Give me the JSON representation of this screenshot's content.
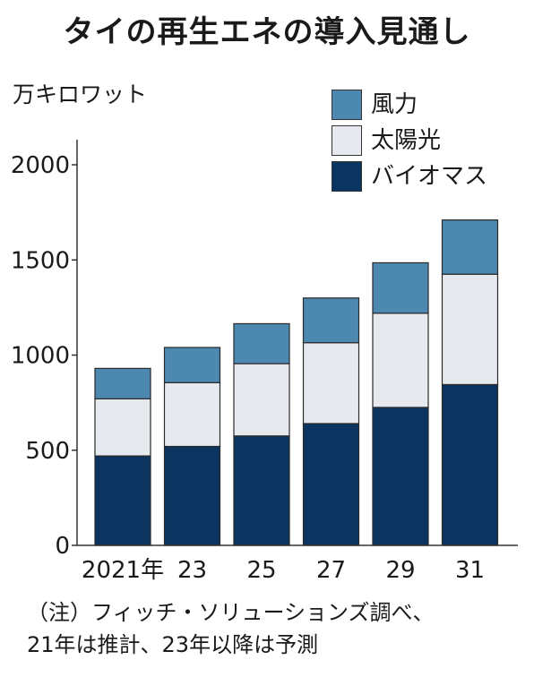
{
  "title": "タイの再生エネの導入見通し",
  "unit_label": "万キロワット",
  "legend": [
    {
      "label": "風力",
      "color": "#4d88b0"
    },
    {
      "label": "太陽光",
      "color": "#e6e9ee"
    },
    {
      "label": "バイオマス",
      "color": "#0b3560"
    }
  ],
  "chart_data": {
    "type": "bar",
    "stacked": true,
    "categories": [
      "2021年",
      "23",
      "25",
      "27",
      "29",
      "31"
    ],
    "series": [
      {
        "name": "バイオマス",
        "color": "#0b3560",
        "values": [
          470,
          520,
          575,
          640,
          725,
          845
        ]
      },
      {
        "name": "太陽光",
        "color": "#e6e9ee",
        "values": [
          300,
          335,
          380,
          425,
          495,
          580
        ]
      },
      {
        "name": "風力",
        "color": "#4d88b0",
        "values": [
          160,
          185,
          210,
          235,
          265,
          285
        ]
      }
    ],
    "ylim": [
      0,
      2000
    ],
    "yticks": [
      "0",
      "500",
      "1000",
      "1500",
      "2000"
    ],
    "ylabel": "万キロワット",
    "grid": false,
    "legend_position": "top-right"
  },
  "note": {
    "line1": "（注）フィッチ・ソリューションズ調べ、",
    "line2": "21年は推計、23年以降は予測"
  }
}
